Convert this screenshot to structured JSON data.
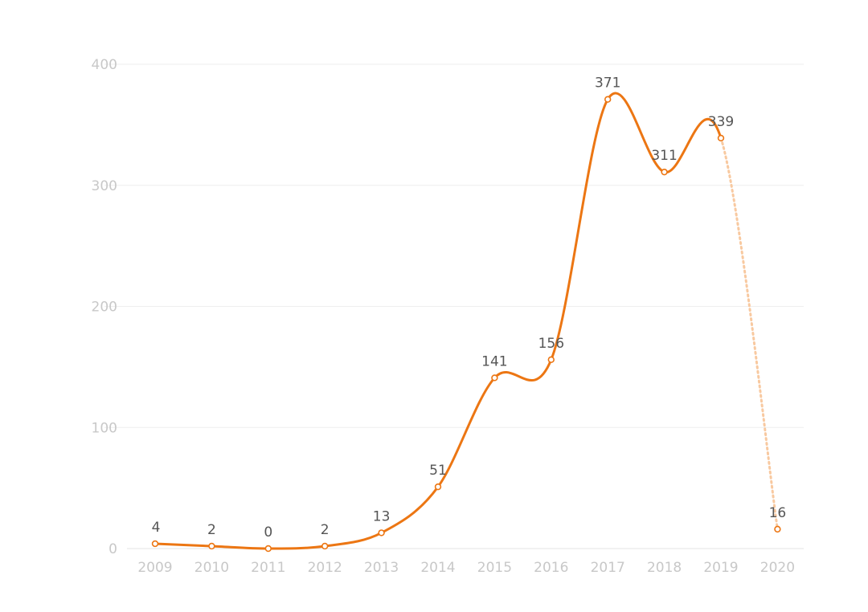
{
  "chart_data": {
    "type": "line",
    "title": "",
    "xlabel": "",
    "ylabel": "",
    "categories": [
      "2009",
      "2010",
      "2011",
      "2012",
      "2013",
      "2014",
      "2015",
      "2016",
      "2017",
      "2018",
      "2019",
      "2020"
    ],
    "series": [
      {
        "values": [
          4,
          2,
          0,
          2,
          13,
          51,
          141,
          156,
          371,
          311,
          339,
          16
        ],
        "color": "#ec7613",
        "style": "solid until 2019, dotted segment 2019-2020"
      }
    ],
    "ylim": [
      0,
      400
    ],
    "yticks": [
      0,
      100,
      200,
      300,
      400
    ],
    "grid": true,
    "legend": "none"
  },
  "colors": {
    "line": "#ec7613",
    "projected_line": "#f8c9a0",
    "marker_fill": "#ffffff"
  }
}
